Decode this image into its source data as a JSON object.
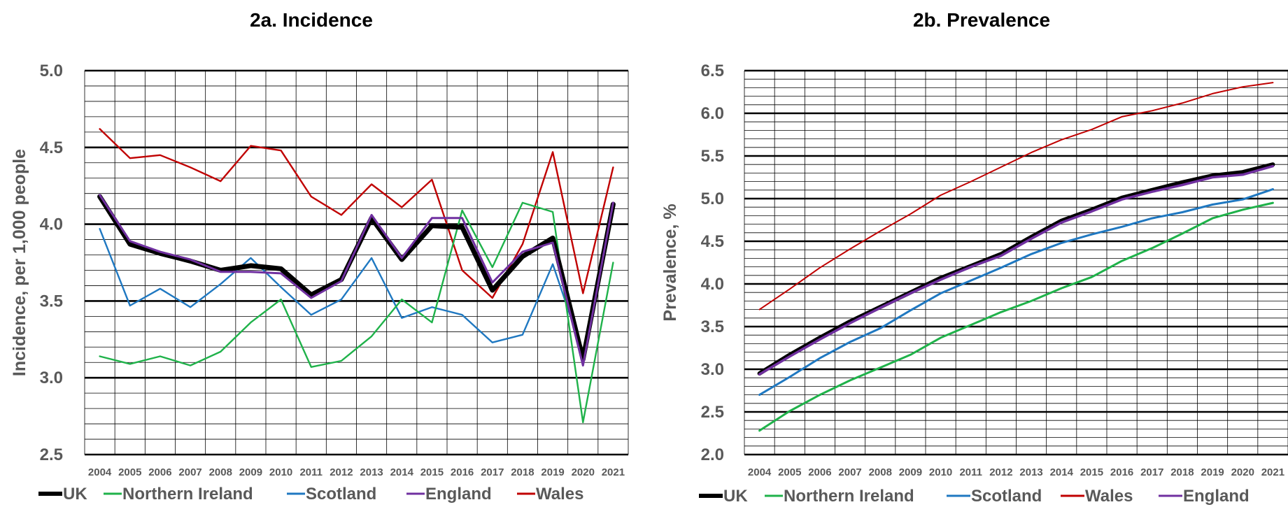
{
  "colors": {
    "UK": "#000000",
    "Northern Ireland": "#1fb24a",
    "Scotland": "#1f78c1",
    "England": "#7030a0",
    "Wales": "#c00000"
  },
  "chart_data": [
    {
      "type": "line",
      "title": "2a. Incidence",
      "ylabel": "Incidence,  per 1,000 people",
      "xlabel": "",
      "ylim": [
        2.5,
        5.0
      ],
      "yticks": [
        "2.5",
        "3.0",
        "3.5",
        "4.0",
        "4.5",
        "5.0"
      ],
      "grid": true,
      "legend_position": "bottom",
      "categories": [
        "2004",
        "2005",
        "2006",
        "2007",
        "2008",
        "2009",
        "2010",
        "2011",
        "2012",
        "2013",
        "2014",
        "2015",
        "2016",
        "2017",
        "2018",
        "2019",
        "2020",
        "2021"
      ],
      "series": [
        {
          "name": "UK",
          "values": [
            4.18,
            3.87,
            3.81,
            3.76,
            3.7,
            3.73,
            3.71,
            3.54,
            3.64,
            4.04,
            3.77,
            3.99,
            3.98,
            3.57,
            3.79,
            3.91,
            3.12,
            4.13
          ]
        },
        {
          "name": "Northern Ireland",
          "values": [
            3.14,
            3.09,
            3.14,
            3.08,
            3.17,
            3.36,
            3.51,
            3.07,
            3.11,
            3.27,
            3.51,
            3.36,
            4.09,
            3.72,
            4.14,
            4.08,
            2.71,
            3.75
          ]
        },
        {
          "name": "Scotland",
          "values": [
            3.97,
            3.47,
            3.58,
            3.46,
            3.61,
            3.78,
            3.59,
            3.41,
            3.51,
            3.78,
            3.39,
            3.46,
            3.41,
            3.23,
            3.28,
            3.74,
            3.16,
            4.12
          ]
        },
        {
          "name": "England",
          "values": [
            4.19,
            3.89,
            3.82,
            3.77,
            3.69,
            3.69,
            3.68,
            3.52,
            3.63,
            4.06,
            3.78,
            4.04,
            4.04,
            3.62,
            3.82,
            3.88,
            3.08,
            4.14
          ]
        },
        {
          "name": "Wales",
          "values": [
            4.62,
            4.43,
            4.45,
            4.37,
            4.28,
            4.51,
            4.48,
            4.18,
            4.06,
            4.26,
            4.11,
            4.29,
            3.7,
            3.52,
            3.87,
            4.47,
            3.55,
            4.37
          ]
        }
      ],
      "legend_order": [
        "UK",
        "Northern Ireland",
        "Scotland",
        "England",
        "Wales"
      ]
    },
    {
      "type": "line",
      "title": "2b. Prevalence",
      "ylabel": "Prevalence, %",
      "xlabel": "",
      "ylim": [
        2.0,
        6.5
      ],
      "yticks": [
        "2.0",
        "2.5",
        "3.0",
        "3.5",
        "4.0",
        "4.5",
        "5.0",
        "5.5",
        "6.0",
        "6.5"
      ],
      "grid": true,
      "legend_position": "bottom",
      "categories": [
        "2004",
        "2005",
        "2006",
        "2007",
        "2008",
        "2009",
        "2010",
        "2011",
        "2012",
        "2013",
        "2014",
        "2015",
        "2016",
        "2017",
        "2018",
        "2019",
        "2020",
        "2021"
      ],
      "series": [
        {
          "name": "UK",
          "values": [
            2.95,
            3.17,
            3.37,
            3.56,
            3.73,
            3.9,
            4.07,
            4.21,
            4.35,
            4.55,
            4.74,
            4.87,
            5.01,
            5.1,
            5.19,
            5.27,
            5.31,
            5.4
          ]
        },
        {
          "name": "Northern Ireland",
          "values": [
            2.28,
            2.51,
            2.7,
            2.87,
            3.02,
            3.17,
            3.37,
            3.52,
            3.67,
            3.8,
            3.95,
            4.08,
            4.27,
            4.42,
            4.59,
            4.77,
            4.87,
            4.95
          ]
        },
        {
          "name": "Scotland",
          "values": [
            2.7,
            2.91,
            3.13,
            3.32,
            3.48,
            3.69,
            3.89,
            4.04,
            4.19,
            4.35,
            4.48,
            4.58,
            4.67,
            4.77,
            4.84,
            4.93,
            4.99,
            5.11
          ]
        },
        {
          "name": "Wales",
          "values": [
            3.7,
            3.94,
            4.19,
            4.41,
            4.62,
            4.82,
            5.04,
            5.2,
            5.37,
            5.54,
            5.69,
            5.81,
            5.96,
            6.03,
            6.12,
            6.23,
            6.31,
            6.36
          ]
        },
        {
          "name": "England",
          "values": [
            2.94,
            3.15,
            3.35,
            3.54,
            3.72,
            3.89,
            4.05,
            4.2,
            4.33,
            4.53,
            4.72,
            4.85,
            4.99,
            5.08,
            5.16,
            5.25,
            5.28,
            5.38
          ]
        }
      ],
      "legend_order": [
        "UK",
        "Northern Ireland",
        "Scotland",
        "Wales",
        "England"
      ]
    }
  ]
}
